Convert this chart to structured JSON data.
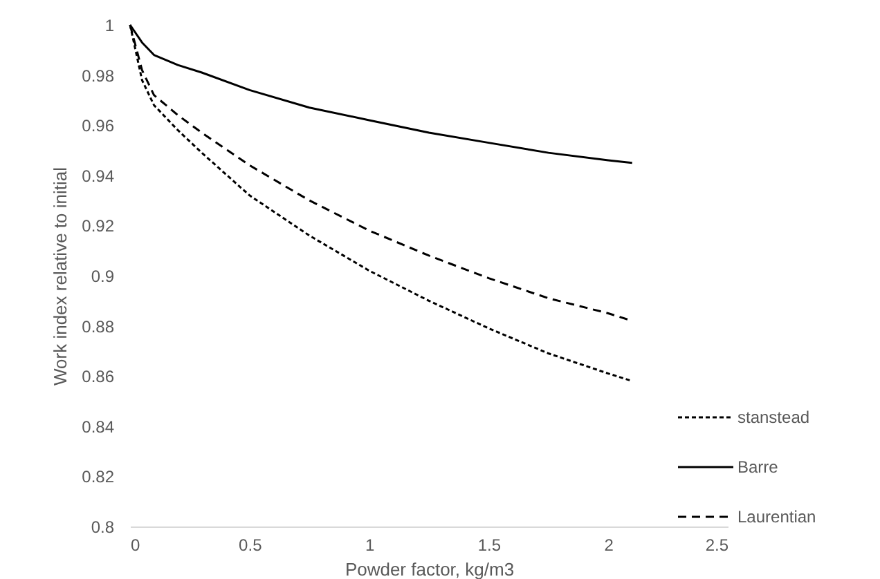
{
  "chart_data": {
    "type": "line",
    "xlabel": "Powder factor, kg/m3",
    "ylabel": "Work index relative to initial",
    "xlim": [
      0,
      2.5
    ],
    "xticks": [
      0,
      0.5,
      1,
      1.5,
      2,
      2.5
    ],
    "ylim": [
      0.8,
      1
    ],
    "yticks": [
      0.8,
      0.82,
      0.84,
      0.86,
      0.88,
      0.9,
      0.92,
      0.94,
      0.96,
      0.98,
      1
    ],
    "grid": false,
    "legend": "right",
    "marker": "none",
    "series": [
      {
        "name": "stanstead",
        "color": "#000000",
        "line_style": "dotted",
        "x": [
          0,
          0.05,
          0.1,
          0.2,
          0.3,
          0.5,
          0.75,
          1,
          1.25,
          1.5,
          1.75,
          2,
          2.1
        ],
        "values": [
          1,
          0.978,
          0.968,
          0.958,
          0.949,
          0.932,
          0.916,
          0.902,
          0.89,
          0.879,
          0.869,
          0.861,
          0.858
        ]
      },
      {
        "name": "Barre",
        "color": "#000000",
        "line_style": "solid",
        "x": [
          0,
          0.05,
          0.1,
          0.2,
          0.3,
          0.5,
          0.75,
          1,
          1.25,
          1.5,
          1.75,
          2,
          2.1
        ],
        "values": [
          1,
          0.993,
          0.988,
          0.984,
          0.981,
          0.974,
          0.967,
          0.962,
          0.957,
          0.953,
          0.949,
          0.946,
          0.945
        ]
      },
      {
        "name": "Laurentian",
        "color": "#000000",
        "line_style": "dashed",
        "x": [
          0,
          0.05,
          0.1,
          0.2,
          0.3,
          0.5,
          0.75,
          1,
          1.25,
          1.5,
          1.75,
          2,
          2.1
        ],
        "values": [
          1,
          0.982,
          0.972,
          0.964,
          0.957,
          0.944,
          0.93,
          0.918,
          0.908,
          0.899,
          0.891,
          0.885,
          0.882
        ]
      }
    ]
  }
}
